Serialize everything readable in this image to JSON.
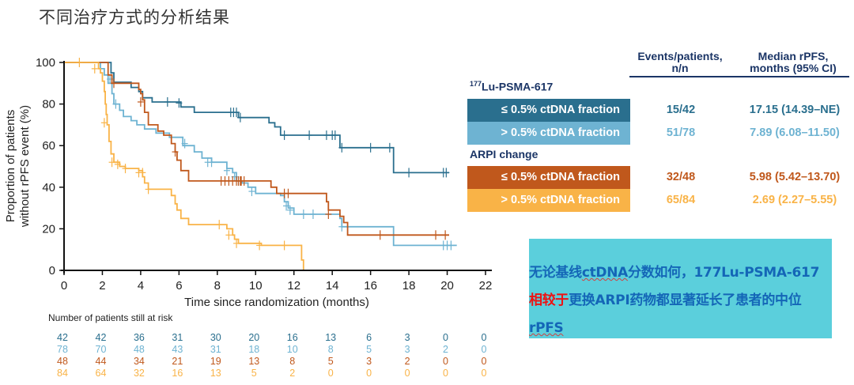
{
  "page": {
    "title": "不同治疗方式的分析结果"
  },
  "chart_data": {
    "type": "line",
    "subtype": "kaplan-meier",
    "title": "",
    "xlabel": "Time since randomization (months)",
    "ylabel": "Proportion of patients without rPFS event (%)",
    "ylabel_lines": [
      "Proportion of patients",
      "without rPFS event (%)"
    ],
    "xlim": [
      0,
      22
    ],
    "ylim": [
      0,
      100
    ],
    "xticks": [
      0,
      2,
      4,
      6,
      8,
      10,
      12,
      14,
      16,
      18,
      20,
      22
    ],
    "yticks": [
      0,
      20,
      40,
      60,
      80,
      100
    ],
    "grid": false,
    "legend_position": "right",
    "series": [
      {
        "name": "177Lu-PSMA-617 ≤ 0.5% ctDNA fraction",
        "color": "#2a6f8e",
        "steps": [
          [
            0,
            100
          ],
          [
            2.4,
            100
          ],
          [
            2.45,
            95
          ],
          [
            2.6,
            90.5
          ],
          [
            3.5,
            88
          ],
          [
            3.9,
            86
          ],
          [
            4.1,
            83
          ],
          [
            4.6,
            81
          ],
          [
            6.1,
            78.6
          ],
          [
            6.8,
            76
          ],
          [
            9.1,
            73.5
          ],
          [
            10.7,
            71
          ],
          [
            11.0,
            69
          ],
          [
            11.3,
            65
          ],
          [
            14.4,
            59
          ],
          [
            17.2,
            47
          ],
          [
            20.1,
            47
          ]
        ],
        "censors": [
          [
            5.4,
            81
          ],
          [
            6.0,
            80.5
          ],
          [
            8.7,
            76
          ],
          [
            8.85,
            76
          ],
          [
            9.0,
            76
          ],
          [
            9.2,
            73.5
          ],
          [
            11.5,
            65
          ],
          [
            12.8,
            65
          ],
          [
            13.7,
            65
          ],
          [
            14.0,
            65
          ],
          [
            14.15,
            65
          ],
          [
            14.5,
            59
          ],
          [
            16.0,
            59
          ],
          [
            17.0,
            59
          ],
          [
            18.0,
            47
          ],
          [
            19.8,
            47
          ],
          [
            19.95,
            47
          ]
        ]
      },
      {
        "name": "177Lu-PSMA-617 > 0.5% ctDNA fraction",
        "color": "#6eb3d2",
        "steps": [
          [
            0,
            100
          ],
          [
            1.7,
            100
          ],
          [
            1.9,
            97
          ],
          [
            2.1,
            94
          ],
          [
            2.3,
            90
          ],
          [
            2.5,
            85
          ],
          [
            2.6,
            80
          ],
          [
            2.9,
            77
          ],
          [
            3.1,
            74
          ],
          [
            3.5,
            72
          ],
          [
            3.8,
            70
          ],
          [
            4.2,
            68
          ],
          [
            4.8,
            66
          ],
          [
            5.5,
            64
          ],
          [
            6.2,
            60
          ],
          [
            6.8,
            57
          ],
          [
            7.2,
            54
          ],
          [
            7.7,
            52
          ],
          [
            8.5,
            49
          ],
          [
            8.8,
            47
          ],
          [
            9.0,
            43
          ],
          [
            9.3,
            42
          ],
          [
            9.6,
            40
          ],
          [
            10.0,
            37
          ],
          [
            11.3,
            36
          ],
          [
            11.5,
            33
          ],
          [
            11.7,
            30
          ],
          [
            12.0,
            27
          ],
          [
            14.4,
            25
          ],
          [
            14.5,
            21
          ],
          [
            17.2,
            12
          ],
          [
            20.5,
            12
          ]
        ],
        "censors": [
          [
            2.3,
            94
          ],
          [
            2.4,
            92
          ],
          [
            2.7,
            80
          ],
          [
            6.3,
            61
          ],
          [
            7.5,
            52
          ],
          [
            7.7,
            52
          ],
          [
            8.5,
            48
          ],
          [
            8.9,
            45
          ],
          [
            9.1,
            43
          ],
          [
            9.8,
            38
          ],
          [
            11.6,
            31
          ],
          [
            11.8,
            29
          ],
          [
            12.5,
            27
          ],
          [
            13.0,
            27
          ],
          [
            14.5,
            21
          ],
          [
            19.8,
            12
          ],
          [
            20.0,
            12
          ],
          [
            20.2,
            12
          ]
        ]
      },
      {
        "name": "ARPI change ≤ 0.5% ctDNA fraction",
        "color": "#c0581c",
        "steps": [
          [
            0,
            100
          ],
          [
            2.1,
            100
          ],
          [
            2.3,
            94
          ],
          [
            2.5,
            90
          ],
          [
            3.9,
            87
          ],
          [
            4.0,
            85
          ],
          [
            4.1,
            82
          ],
          [
            4.2,
            76
          ],
          [
            4.4,
            70
          ],
          [
            4.9,
            67
          ],
          [
            5.2,
            65
          ],
          [
            5.6,
            61
          ],
          [
            5.8,
            57
          ],
          [
            5.9,
            53
          ],
          [
            6.1,
            48
          ],
          [
            6.5,
            43
          ],
          [
            10.8,
            40
          ],
          [
            11.1,
            37
          ],
          [
            13.7,
            33
          ],
          [
            13.8,
            29
          ],
          [
            14.4,
            26
          ],
          [
            14.6,
            23
          ],
          [
            14.8,
            17
          ],
          [
            20.1,
            17
          ]
        ],
        "censors": [
          [
            2.6,
            90
          ],
          [
            4.0,
            81
          ],
          [
            5.8,
            57
          ],
          [
            8.2,
            43
          ],
          [
            8.4,
            43
          ],
          [
            8.6,
            43
          ],
          [
            8.8,
            43
          ],
          [
            9.0,
            43
          ],
          [
            9.2,
            43
          ],
          [
            9.4,
            43
          ],
          [
            9.1,
            43
          ],
          [
            9.25,
            43
          ],
          [
            11.5,
            37
          ],
          [
            11.7,
            37
          ],
          [
            13.8,
            27
          ],
          [
            16.5,
            17
          ],
          [
            19.4,
            17
          ],
          [
            19.9,
            17
          ]
        ]
      },
      {
        "name": "ARPI change > 0.5% ctDNA fraction",
        "color": "#f9b347",
        "steps": [
          [
            0,
            100
          ],
          [
            1.6,
            100
          ],
          [
            1.8,
            97
          ],
          [
            1.9,
            95
          ],
          [
            2.0,
            91
          ],
          [
            2.1,
            86
          ],
          [
            2.15,
            80
          ],
          [
            2.2,
            75
          ],
          [
            2.25,
            70
          ],
          [
            2.35,
            62
          ],
          [
            2.45,
            56
          ],
          [
            2.6,
            52
          ],
          [
            2.9,
            50
          ],
          [
            3.2,
            49
          ],
          [
            3.9,
            48
          ],
          [
            4.1,
            45
          ],
          [
            4.2,
            42
          ],
          [
            4.4,
            39
          ],
          [
            5.6,
            36
          ],
          [
            5.8,
            32
          ],
          [
            5.9,
            29
          ],
          [
            6.1,
            25
          ],
          [
            6.5,
            22
          ],
          [
            8.5,
            20
          ],
          [
            8.8,
            17
          ],
          [
            8.9,
            15
          ],
          [
            9.1,
            13
          ],
          [
            10.3,
            12
          ],
          [
            12.3,
            12
          ],
          [
            12.4,
            5
          ],
          [
            12.5,
            0
          ]
        ],
        "censors": [
          [
            0.8,
            100
          ],
          [
            1.6,
            97
          ],
          [
            2.1,
            71
          ],
          [
            2.5,
            52
          ],
          [
            2.8,
            51
          ],
          [
            3.2,
            49
          ],
          [
            3.9,
            47
          ],
          [
            4.1,
            47
          ],
          [
            4.4,
            39
          ],
          [
            8.1,
            22
          ],
          [
            8.6,
            17
          ],
          [
            9.0,
            13
          ],
          [
            10.2,
            12
          ],
          [
            11.5,
            12
          ]
        ]
      }
    ],
    "risk_table": {
      "title": "Number of patients still at risk",
      "times": [
        0,
        2,
        4,
        6,
        8,
        10,
        12,
        14,
        16,
        18,
        20,
        22
      ],
      "rows": [
        {
          "color": "#2a6f8e",
          "values": [
            42,
            42,
            36,
            31,
            30,
            20,
            16,
            13,
            6,
            3,
            0,
            0
          ]
        },
        {
          "color": "#6eb3d2",
          "values": [
            78,
            70,
            48,
            43,
            31,
            18,
            10,
            8,
            5,
            3,
            2,
            0
          ]
        },
        {
          "color": "#c0581c",
          "values": [
            48,
            44,
            34,
            21,
            19,
            13,
            8,
            5,
            3,
            2,
            0,
            0
          ]
        },
        {
          "color": "#f9b347",
          "values": [
            84,
            64,
            32,
            16,
            13,
            5,
            2,
            0,
            0,
            0,
            0,
            0
          ]
        }
      ]
    },
    "legend": {
      "header_events": [
        "Events/patients,",
        "n/n"
      ],
      "header_median": [
        "Median rPFS,",
        "months (95% CI)"
      ],
      "groups": [
        {
          "title_sup": "177",
          "title": "Lu-PSMA-617",
          "items": [
            {
              "label": "≤ 0.5% ctDNA fraction",
              "color": "#2a6f8e",
              "events": "15/42",
              "median": "17.15 (14.39–NE)"
            },
            {
              "label": "> 0.5% ctDNA fraction",
              "color": "#6eb3d2",
              "events": "51/78",
              "median": "7.89 (6.08–11.50)"
            }
          ]
        },
        {
          "title_sup": "",
          "title": "ARPI change",
          "items": [
            {
              "label": "≤ 0.5% ctDNA fraction",
              "color": "#c0581c",
              "events": "32/48",
              "median": "5.98 (5.42–13.70)"
            },
            {
              "label": "> 0.5% ctDNA fraction",
              "color": "#f9b347",
              "events": "65/84",
              "median": "2.69 (2.27–5.55)"
            }
          ]
        }
      ]
    }
  },
  "note": {
    "background": "#5bcfdc",
    "part1": "无论基线",
    "part2": "ctDNA",
    "part3": "分数如何，177Lu-PSMA-617",
    "highlight": "相较于",
    "part4": "更换ARPI药物都显著延长了患者的中位",
    "part5": "rPFS"
  }
}
